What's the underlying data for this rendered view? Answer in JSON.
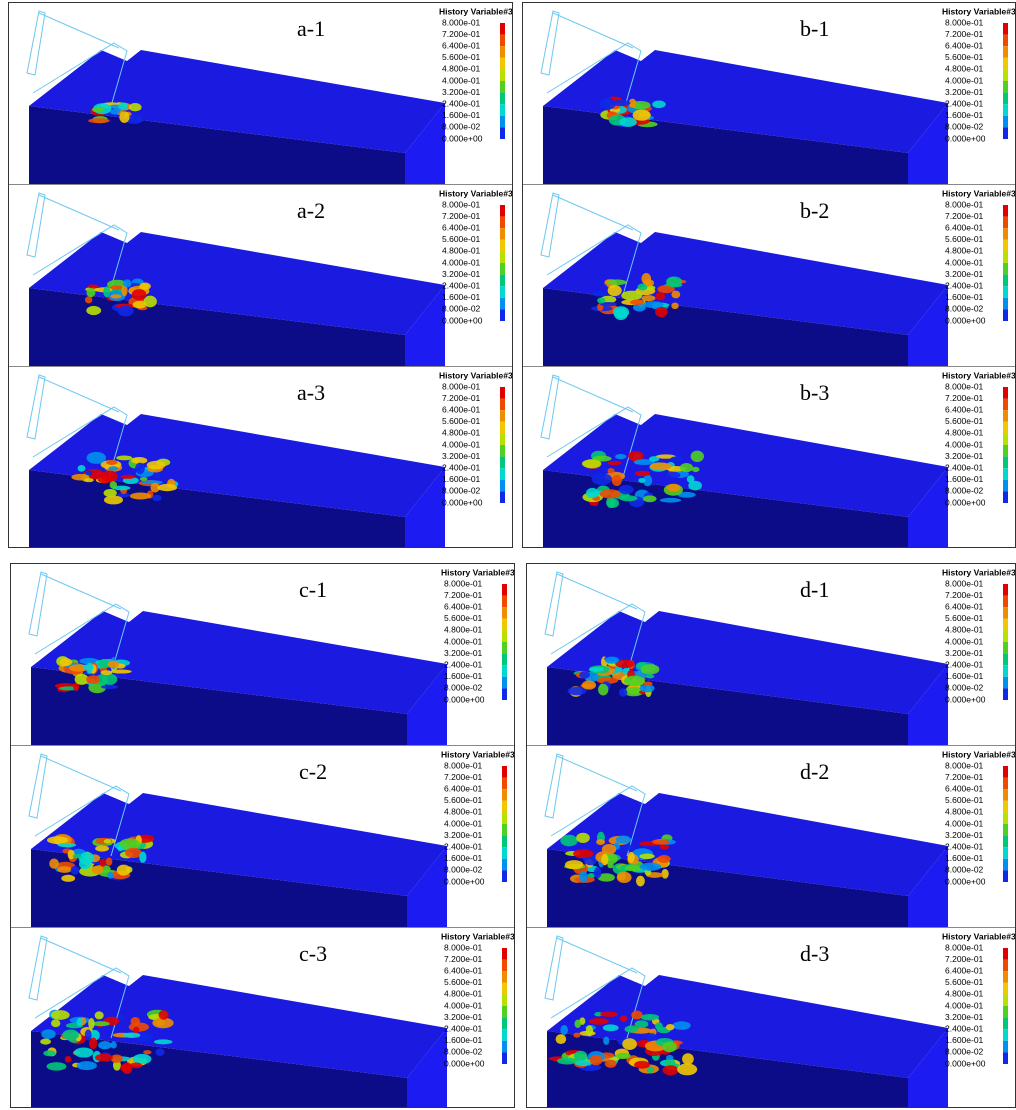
{
  "panels": [
    {
      "label": "a-1"
    },
    {
      "label": "a-2"
    },
    {
      "label": "a-3"
    },
    {
      "label": "b-1"
    },
    {
      "label": "b-2"
    },
    {
      "label": "b-3"
    },
    {
      "label": "c-1"
    },
    {
      "label": "c-2"
    },
    {
      "label": "c-3"
    },
    {
      "label": "d-1"
    },
    {
      "label": "d-2"
    },
    {
      "label": "d-3"
    }
  ],
  "colorbar": {
    "title": "History Variable#3",
    "ticks": [
      "8.000e-01",
      "7.200e-01",
      "6.400e-01",
      "5.600e-01",
      "4.800e-01",
      "4.000e-01",
      "3.200e-01",
      "2.400e-01",
      "1.600e-01",
      "8.000e-02",
      "0.000e+00"
    ],
    "colors": [
      "#e00000",
      "#f04a00",
      "#f08c00",
      "#f0c800",
      "#b8e000",
      "#50d020",
      "#00c878",
      "#00d8d0",
      "#0090f0",
      "#1028e8"
    ]
  }
}
